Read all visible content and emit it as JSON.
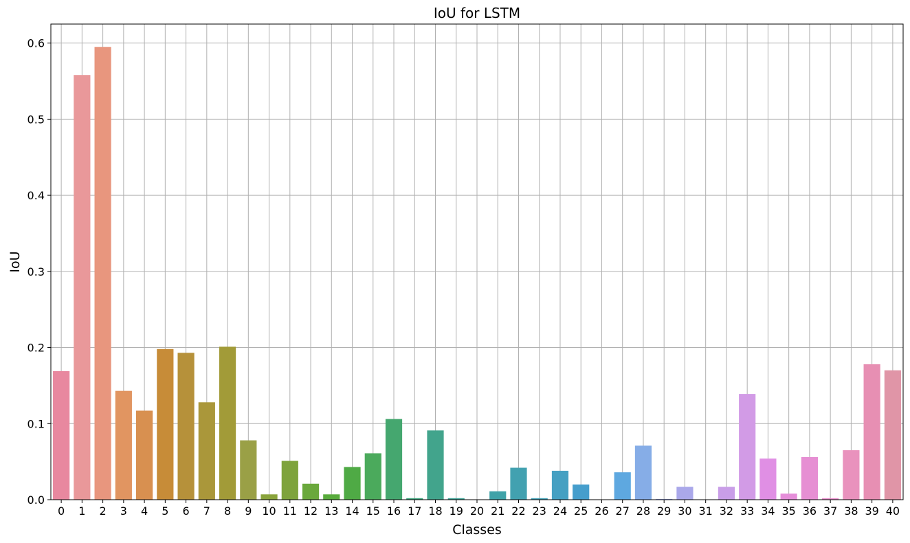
{
  "chart_data": {
    "type": "bar",
    "title": "IoU for LSTM",
    "xlabel": "Classes",
    "ylabel": "IoU",
    "ylim": [
      0,
      0.625
    ],
    "yticks": [
      "0.0",
      "0.1",
      "0.2",
      "0.3",
      "0.4",
      "0.5",
      "0.6"
    ],
    "grid": true,
    "categories": [
      "0",
      "1",
      "2",
      "3",
      "4",
      "5",
      "6",
      "7",
      "8",
      "9",
      "10",
      "11",
      "12",
      "13",
      "14",
      "15",
      "16",
      "17",
      "18",
      "19",
      "20",
      "21",
      "22",
      "23",
      "24",
      "25",
      "26",
      "27",
      "28",
      "29",
      "30",
      "31",
      "32",
      "33",
      "34",
      "35",
      "36",
      "37",
      "38",
      "39",
      "40"
    ],
    "values": [
      0.169,
      0.558,
      0.595,
      0.143,
      0.117,
      0.198,
      0.193,
      0.128,
      0.201,
      0.078,
      0.007,
      0.051,
      0.021,
      0.007,
      0.043,
      0.061,
      0.106,
      0.002,
      0.091,
      0.002,
      0.0,
      0.011,
      0.042,
      0.002,
      0.038,
      0.02,
      0.0,
      0.036,
      0.071,
      0.001,
      0.017,
      0.0,
      0.017,
      0.139,
      0.054,
      0.008,
      0.056,
      0.002,
      0.065,
      0.178,
      0.17
    ],
    "colors": [
      "#e8889f",
      "#e9989a",
      "#e8967e",
      "#e19561",
      "#d89050",
      "#c78c38",
      "#b6913a",
      "#aa973a",
      "#a29b38",
      "#9aa046",
      "#8aa43c",
      "#7ea33c",
      "#6aa83c",
      "#58ab3c",
      "#4faa45",
      "#4baa5c",
      "#45a76f",
      "#40a57e",
      "#42a48c",
      "#41a396",
      "#41a39e",
      "#40a2a8",
      "#42a1b0",
      "#43a0b6",
      "#45a0c2",
      "#469ecc",
      "#4c9cd6",
      "#5ea8e0",
      "#86ade7",
      "#9aa9e9",
      "#aaa8ea",
      "#bca4ea",
      "#c99ee8",
      "#d29be6",
      "#e08fe4",
      "#e58ed9",
      "#e68fd3",
      "#e88ecb",
      "#e992bd",
      "#e78fb3",
      "#e095a7"
    ]
  }
}
